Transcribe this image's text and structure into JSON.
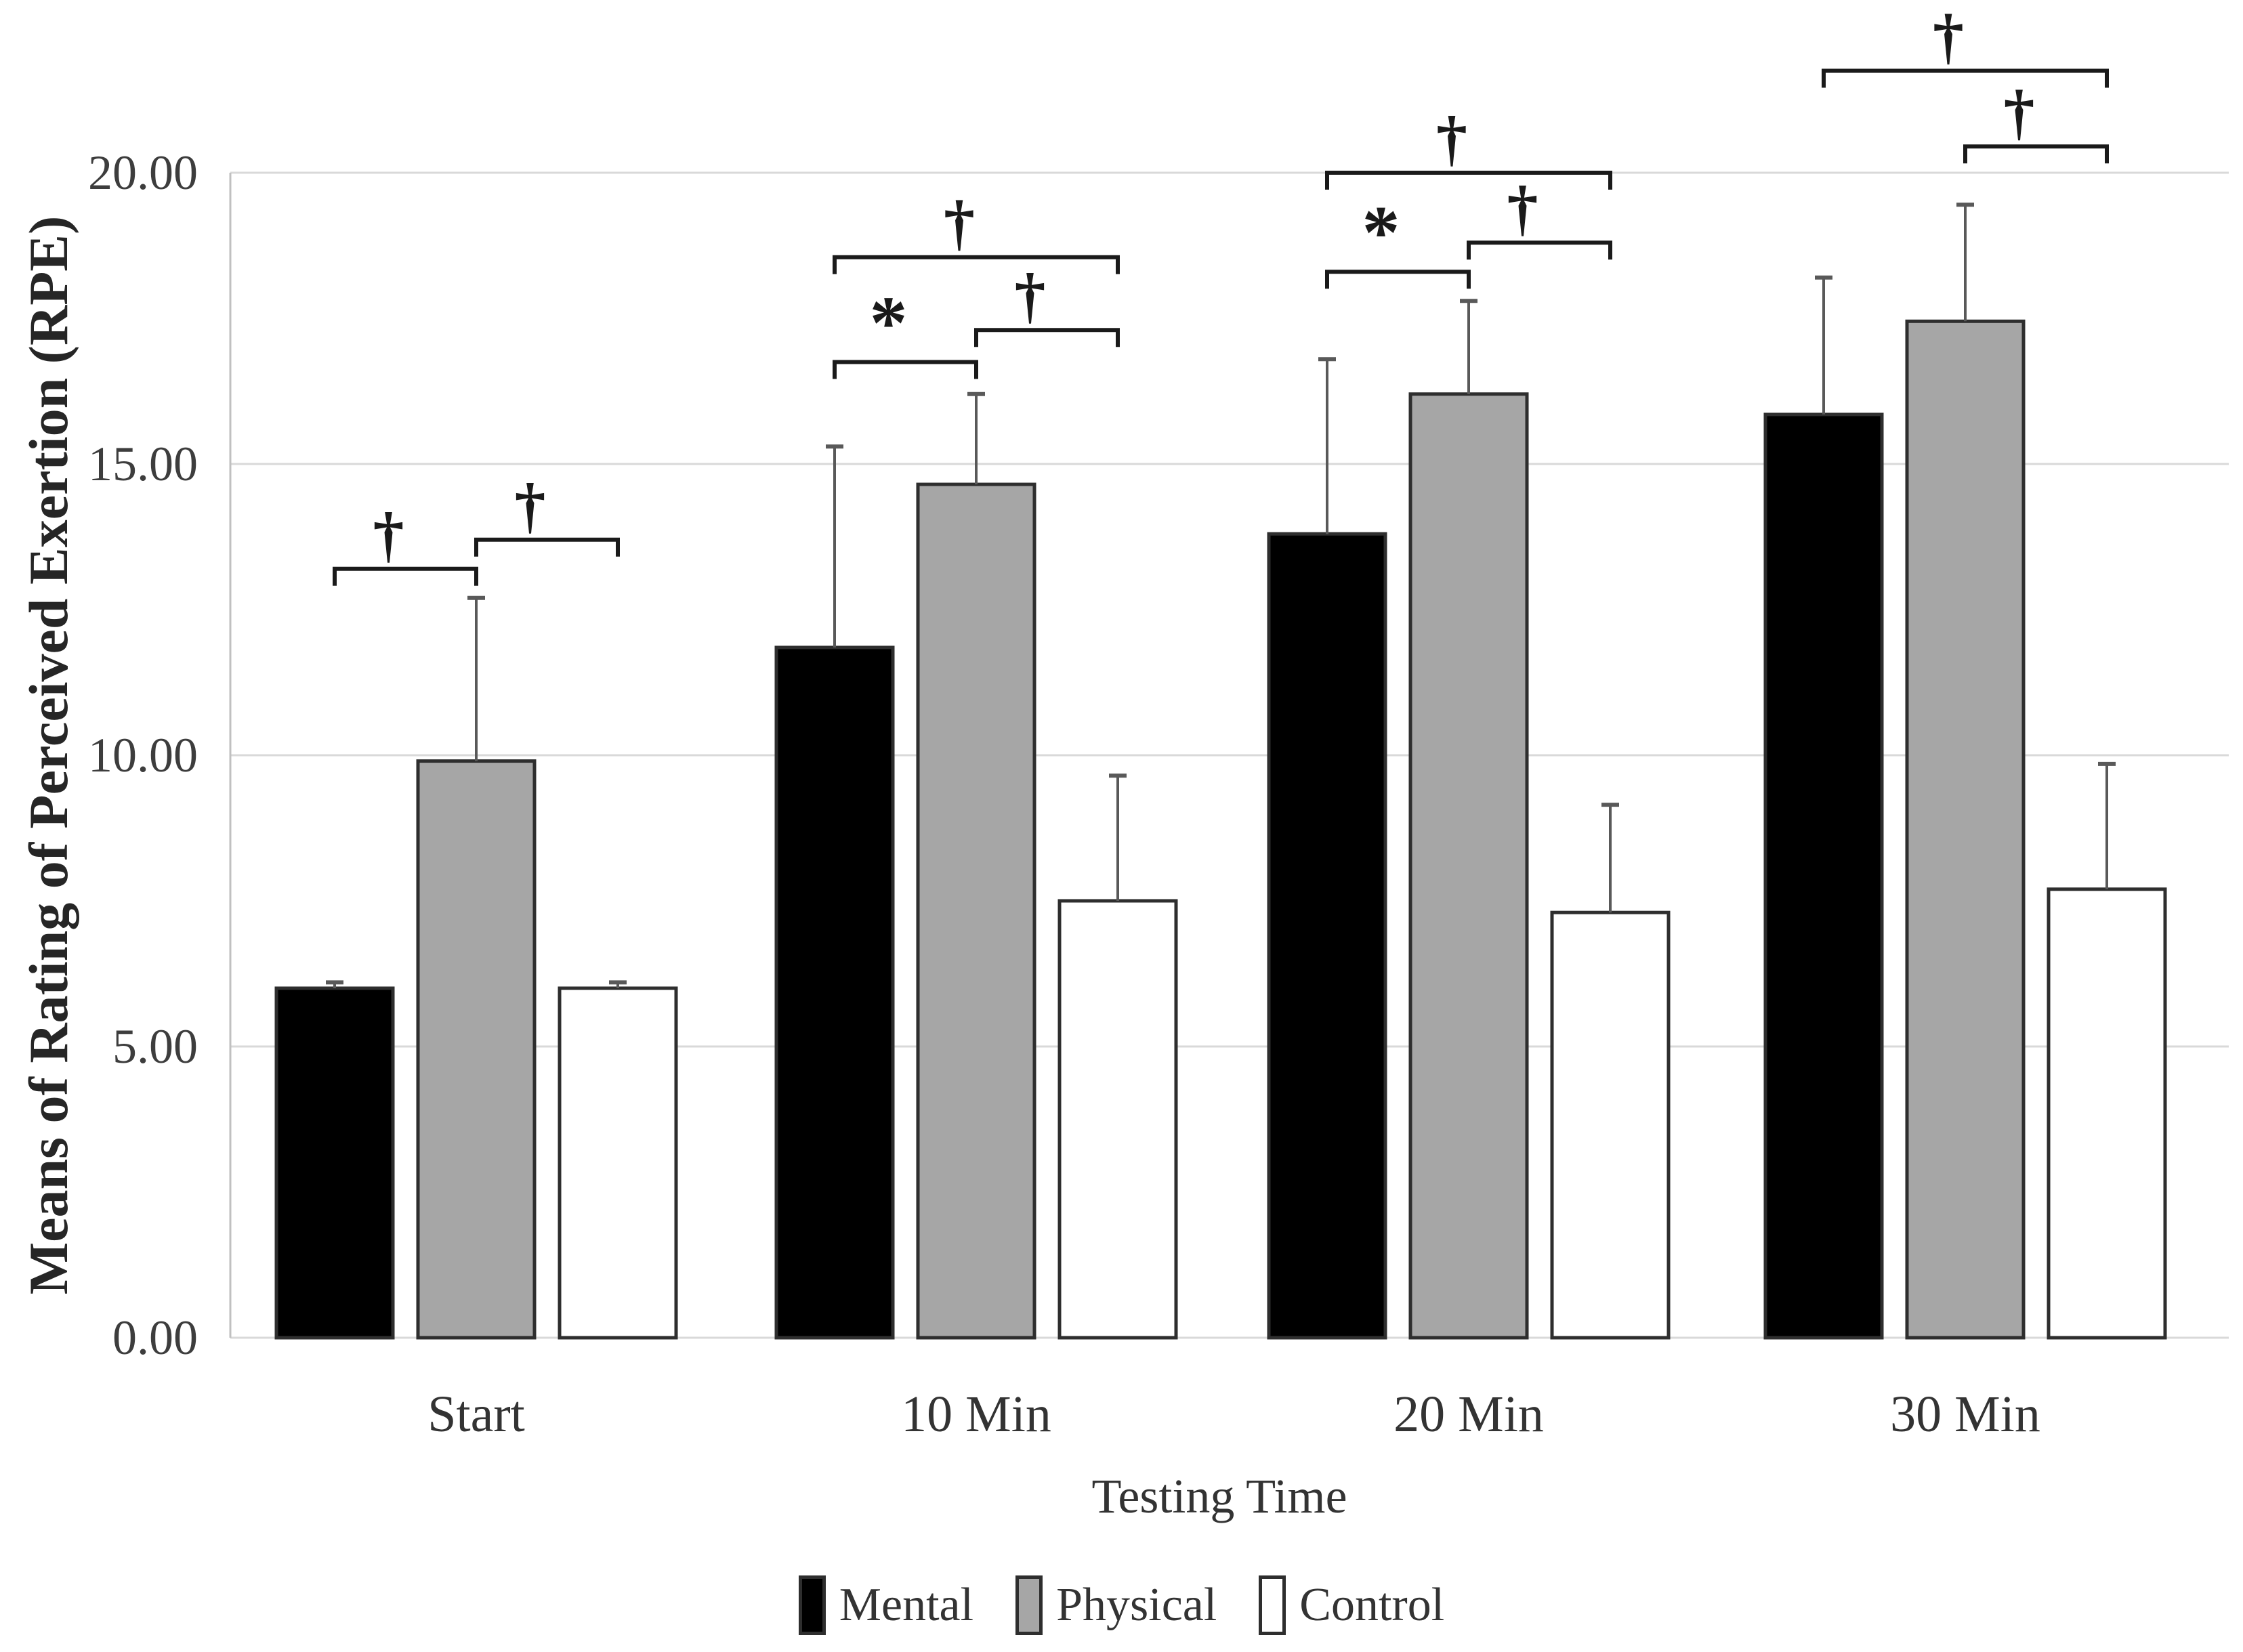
{
  "chart_data": {
    "type": "bar",
    "title": "",
    "xlabel": "Testing Time",
    "ylabel": "Means of Rating of Perceived Exertion (RPE)",
    "categories": [
      "Start",
      "10 Min",
      "20 Min",
      "30 Min"
    ],
    "y_tick_labels": [
      "20.00",
      "15.00",
      "10.00",
      "5.00",
      "0.00"
    ],
    "y_tick_values": [
      20,
      15,
      10,
      5,
      0
    ],
    "ylim": [
      0,
      20
    ],
    "grid": true,
    "legend_position": "bottom",
    "bar_outline_color": "#2e2e2e",
    "error_bar_color": "#595959",
    "grid_color": "#d9d9d9",
    "axis_color": "#c0c0c0",
    "annotation_color": "#1a1a1a",
    "series": [
      {
        "name": "Mental",
        "color": "#000000",
        "values": [
          6.0,
          11.85,
          13.8,
          15.85
        ],
        "errors_plus": [
          0.1,
          3.45,
          3.0,
          2.35
        ]
      },
      {
        "name": "Physical",
        "color": "#a6a6a6",
        "values": [
          9.9,
          14.65,
          16.2,
          17.45
        ],
        "errors_plus": [
          2.8,
          1.55,
          1.6,
          2.0
        ]
      },
      {
        "name": "Control",
        "color": "#ffffff",
        "values": [
          6.0,
          7.5,
          7.3,
          7.7
        ],
        "errors_plus": [
          0.1,
          2.15,
          1.85,
          2.15
        ]
      }
    ],
    "significance_brackets": [
      {
        "category": "Start",
        "from": "Mental",
        "to": "Physical",
        "y": 13.2,
        "symbol": "†"
      },
      {
        "category": "Start",
        "from": "Physical",
        "to": "Control",
        "y": 13.7,
        "symbol": "†"
      },
      {
        "category": "10 Min",
        "from": "Mental",
        "to": "Physical",
        "y": 16.75,
        "symbol": "*"
      },
      {
        "category": "10 Min",
        "from": "Physical",
        "to": "Control",
        "y": 17.3,
        "symbol": "†"
      },
      {
        "category": "10 Min",
        "from": "Mental",
        "to": "Control",
        "y": 18.55,
        "symbol": "†"
      },
      {
        "category": "20 Min",
        "from": "Mental",
        "to": "Physical",
        "y": 18.3,
        "symbol": "*"
      },
      {
        "category": "20 Min",
        "from": "Physical",
        "to": "Control",
        "y": 18.8,
        "symbol": "†"
      },
      {
        "category": "20 Min",
        "from": "Mental",
        "to": "Control",
        "y": 20.0,
        "symbol": "†"
      },
      {
        "category": "30 Min",
        "from": "Physical",
        "to": "Control",
        "y": 20.45,
        "symbol": "†"
      },
      {
        "category": "30 Min",
        "from": "Mental",
        "to": "Control",
        "y": 21.75,
        "symbol": "†"
      }
    ]
  }
}
